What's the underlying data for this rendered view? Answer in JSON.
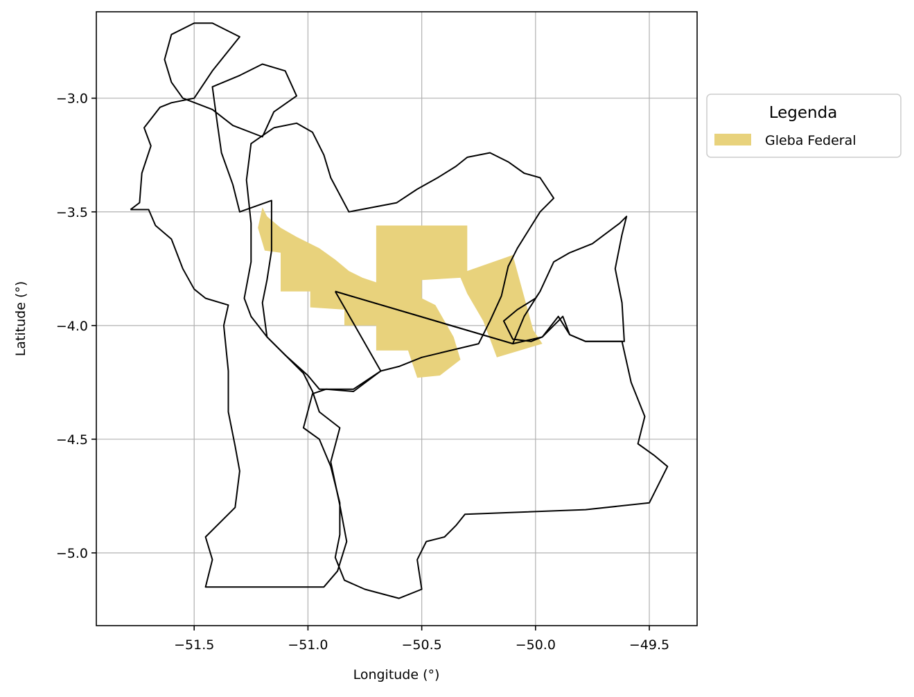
{
  "chart_data": {
    "type": "map",
    "xlabel": "Longitude (°)",
    "ylabel": "Latitude (°)",
    "xlim": [
      -51.93,
      -49.29
    ],
    "ylim": [
      -5.32,
      -2.62
    ],
    "xticks": [
      -51.5,
      -51.0,
      -50.5,
      -50.0,
      -49.5
    ],
    "yticks": [
      -3.0,
      -3.5,
      -4.0,
      -4.5,
      -5.0
    ],
    "xtick_labels": [
      "−51.5",
      "−51.0",
      "−50.5",
      "−50.0",
      "−49.5"
    ],
    "ytick_labels": [
      "−3.0",
      "−3.5",
      "−4.0",
      "−4.5",
      "−5.0"
    ],
    "grid": true,
    "legend": {
      "title": "Legenda",
      "placement": "outside upper right",
      "entries": [
        {
          "label": "Gleba Federal",
          "color": "#e8d27c"
        }
      ]
    },
    "colors": {
      "gleba": "#e8d27c",
      "boundary": "#000000",
      "grid": "#b0b0b0"
    },
    "gleba_federal": [
      [
        -51.2,
        -3.48
      ],
      [
        -51.18,
        -3.52
      ],
      [
        -51.12,
        -3.57
      ],
      [
        -51.05,
        -3.61
      ],
      [
        -50.95,
        -3.66
      ],
      [
        -50.88,
        -3.71
      ],
      [
        -50.82,
        -3.76
      ],
      [
        -50.76,
        -3.79
      ],
      [
        -50.7,
        -3.81
      ],
      [
        -50.7,
        -3.56
      ],
      [
        -50.3,
        -3.56
      ],
      [
        -50.3,
        -3.76
      ],
      [
        -50.1,
        -3.69
      ],
      [
        -50.04,
        -3.91
      ],
      [
        -50.01,
        -4.02
      ],
      [
        -49.97,
        -4.08
      ],
      [
        -50.17,
        -4.14
      ],
      [
        -50.23,
        -3.98
      ],
      [
        -50.3,
        -3.86
      ],
      [
        -50.33,
        -3.79
      ],
      [
        -50.5,
        -3.8
      ],
      [
        -50.5,
        -3.88
      ],
      [
        -50.44,
        -3.91
      ],
      [
        -50.36,
        -4.05
      ],
      [
        -50.33,
        -4.15
      ],
      [
        -50.42,
        -4.22
      ],
      [
        -50.52,
        -4.23
      ],
      [
        -50.56,
        -4.11
      ],
      [
        -50.7,
        -4.11
      ],
      [
        -50.7,
        -4.0
      ],
      [
        -50.84,
        -4.0
      ],
      [
        -50.84,
        -3.93
      ],
      [
        -50.99,
        -3.92
      ],
      [
        -50.99,
        -3.85
      ],
      [
        -51.12,
        -3.85
      ],
      [
        -51.12,
        -3.68
      ],
      [
        -51.19,
        -3.67
      ],
      [
        -51.22,
        -3.57
      ]
    ],
    "boundaries": [
      [
        [
          -51.78,
          -3.49
        ],
        [
          -51.7,
          -3.49
        ],
        [
          -51.67,
          -3.56
        ],
        [
          -51.6,
          -3.62
        ],
        [
          -51.55,
          -3.75
        ],
        [
          -51.5,
          -3.84
        ],
        [
          -51.45,
          -3.88
        ],
        [
          -51.35,
          -3.91
        ],
        [
          -51.37,
          -4.0
        ],
        [
          -51.35,
          -4.2
        ],
        [
          -51.35,
          -4.38
        ],
        [
          -51.32,
          -4.53
        ],
        [
          -51.3,
          -4.64
        ],
        [
          -51.32,
          -4.8
        ],
        [
          -51.45,
          -4.93
        ],
        [
          -51.42,
          -5.03
        ],
        [
          -51.45,
          -5.15
        ],
        [
          -50.93,
          -5.15
        ],
        [
          -50.87,
          -5.08
        ],
        [
          -50.83,
          -4.95
        ],
        [
          -50.86,
          -4.79
        ],
        [
          -50.9,
          -4.6
        ],
        [
          -50.86,
          -4.45
        ],
        [
          -50.95,
          -4.38
        ],
        [
          -50.98,
          -4.29
        ],
        [
          -51.02,
          -4.21
        ],
        [
          -51.1,
          -4.13
        ],
        [
          -51.18,
          -4.05
        ],
        [
          -51.2,
          -3.9
        ],
        [
          -51.18,
          -3.8
        ],
        [
          -51.16,
          -3.67
        ],
        [
          -51.16,
          -3.45
        ],
        [
          -51.3,
          -3.5
        ],
        [
          -51.33,
          -3.38
        ],
        [
          -51.38,
          -3.24
        ],
        [
          -51.4,
          -3.1
        ],
        [
          -51.42,
          -2.95
        ],
        [
          -51.3,
          -2.9
        ],
        [
          -51.2,
          -2.85
        ],
        [
          -51.1,
          -2.88
        ],
        [
          -51.05,
          -2.99
        ],
        [
          -51.15,
          -3.06
        ],
        [
          -51.2,
          -3.17
        ],
        [
          -51.33,
          -3.12
        ],
        [
          -51.42,
          -3.05
        ],
        [
          -51.55,
          -3.0
        ],
        [
          -51.6,
          -2.93
        ],
        [
          -51.63,
          -2.83
        ],
        [
          -51.6,
          -2.72
        ],
        [
          -51.5,
          -2.67
        ],
        [
          -51.42,
          -2.67
        ],
        [
          -51.3,
          -2.73
        ],
        [
          -51.42,
          -2.88
        ],
        [
          -51.5,
          -3.0
        ],
        [
          -51.6,
          -3.02
        ],
        [
          -51.65,
          -3.04
        ],
        [
          -51.72,
          -3.13
        ],
        [
          -51.69,
          -3.21
        ],
        [
          -51.73,
          -3.33
        ],
        [
          -51.74,
          -3.46
        ],
        [
          -51.78,
          -3.49
        ]
      ],
      [
        [
          -51.15,
          -3.13
        ],
        [
          -51.05,
          -3.11
        ],
        [
          -50.98,
          -3.15
        ],
        [
          -50.93,
          -3.25
        ],
        [
          -50.9,
          -3.35
        ],
        [
          -50.82,
          -3.5
        ],
        [
          -50.61,
          -3.46
        ],
        [
          -50.52,
          -3.4
        ],
        [
          -50.43,
          -3.35
        ],
        [
          -50.35,
          -3.3
        ],
        [
          -50.3,
          -3.26
        ],
        [
          -50.2,
          -3.24
        ],
        [
          -50.12,
          -3.28
        ],
        [
          -50.05,
          -3.33
        ],
        [
          -49.98,
          -3.35
        ],
        [
          -49.92,
          -3.44
        ],
        [
          -49.98,
          -3.5
        ],
        [
          -50.03,
          -3.58
        ],
        [
          -50.08,
          -3.66
        ],
        [
          -50.12,
          -3.74
        ],
        [
          -50.15,
          -3.87
        ],
        [
          -50.2,
          -3.98
        ],
        [
          -50.25,
          -4.08
        ],
        [
          -50.5,
          -4.14
        ],
        [
          -50.6,
          -4.18
        ],
        [
          -50.68,
          -4.2
        ],
        [
          -50.8,
          -4.28
        ],
        [
          -50.95,
          -4.28
        ],
        [
          -51.0,
          -4.22
        ],
        [
          -51.1,
          -4.13
        ],
        [
          -51.18,
          -4.05
        ],
        [
          -51.25,
          -3.96
        ],
        [
          -51.28,
          -3.88
        ],
        [
          -51.25,
          -3.72
        ],
        [
          -51.25,
          -3.55
        ],
        [
          -51.27,
          -3.36
        ],
        [
          -51.25,
          -3.2
        ],
        [
          -51.15,
          -3.13
        ]
      ],
      [
        [
          -50.88,
          -3.85
        ],
        [
          -50.1,
          -4.08
        ],
        [
          -50.05,
          -3.96
        ],
        [
          -49.98,
          -3.85
        ],
        [
          -49.92,
          -3.72
        ],
        [
          -49.85,
          -3.68
        ],
        [
          -49.75,
          -3.64
        ],
        [
          -49.63,
          -3.55
        ],
        [
          -49.6,
          -3.52
        ],
        [
          -49.62,
          -3.6
        ],
        [
          -49.65,
          -3.75
        ],
        [
          -49.62,
          -3.9
        ],
        [
          -49.61,
          -4.07
        ],
        [
          -49.78,
          -4.07
        ],
        [
          -49.85,
          -4.04
        ],
        [
          -49.9,
          -3.96
        ],
        [
          -49.97,
          -4.05
        ],
        [
          -50.02,
          -4.07
        ],
        [
          -50.1,
          -4.06
        ],
        [
          -50.14,
          -3.98
        ],
        [
          -50.08,
          -3.93
        ],
        [
          -50.0,
          -3.88
        ],
        [
          -49.98,
          -3.85
        ]
      ],
      [
        [
          -50.88,
          -3.85
        ],
        [
          -50.68,
          -4.2
        ],
        [
          -50.8,
          -4.29
        ],
        [
          -50.92,
          -4.28
        ],
        [
          -50.98,
          -4.3
        ],
        [
          -51.02,
          -4.45
        ],
        [
          -50.95,
          -4.5
        ],
        [
          -50.9,
          -4.62
        ],
        [
          -50.86,
          -4.78
        ],
        [
          -50.86,
          -4.92
        ],
        [
          -50.88,
          -5.02
        ],
        [
          -50.84,
          -5.12
        ],
        [
          -50.75,
          -5.16
        ],
        [
          -50.6,
          -5.2
        ],
        [
          -50.5,
          -5.16
        ],
        [
          -50.52,
          -5.03
        ],
        [
          -50.48,
          -4.95
        ],
        [
          -50.4,
          -4.93
        ],
        [
          -50.35,
          -4.88
        ],
        [
          -50.31,
          -4.83
        ],
        [
          -49.78,
          -4.81
        ],
        [
          -49.5,
          -4.78
        ],
        [
          -49.47,
          -4.72
        ],
        [
          -49.42,
          -4.62
        ],
        [
          -49.48,
          -4.57
        ],
        [
          -49.55,
          -4.52
        ],
        [
          -49.52,
          -4.4
        ],
        [
          -49.58,
          -4.25
        ],
        [
          -49.62,
          -4.07
        ],
        [
          -49.78,
          -4.07
        ],
        [
          -49.85,
          -4.04
        ],
        [
          -49.88,
          -3.96
        ],
        [
          -49.97,
          -4.05
        ],
        [
          -50.1,
          -4.08
        ],
        [
          -50.88,
          -3.85
        ]
      ]
    ]
  }
}
